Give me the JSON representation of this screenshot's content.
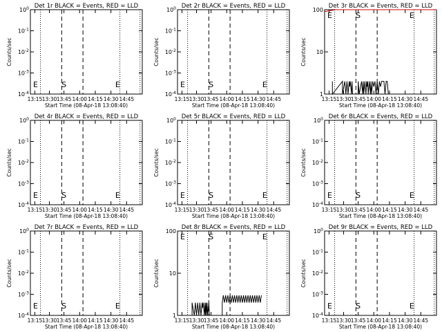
{
  "chart_data": [
    {
      "type": "line",
      "title": "Det 1r BLACK = Events, RED = LLD",
      "xlabel": "Start Time (08-Apr-18 13:08:40)",
      "ylabel": "Counts/sec",
      "yscale": "log",
      "yrange": "1e0-1e-4",
      "yticks": [
        "10^-4",
        "10^-3",
        "10^-2",
        "10^-1",
        "10^0"
      ],
      "xticks": [
        "13:15",
        "13:30",
        "13:45",
        "14:00",
        "14:15",
        "14:30",
        "14:45"
      ],
      "markers": {
        "start": "S",
        "end": "E"
      },
      "series": []
    },
    {
      "type": "line",
      "title": "Det 2r BLACK = Events, RED = LLD",
      "xlabel": "Start Time (08-Apr-18 13:08:40)",
      "ylabel": "Counts/sec",
      "yscale": "log",
      "yrange": "1e0-1e-4",
      "yticks": [
        "10^-4",
        "10^-3",
        "10^-2",
        "10^-1",
        "10^0"
      ],
      "xticks": [
        "13:15",
        "13:30",
        "13:45",
        "14:00",
        "14:15",
        "14:30",
        "14:45"
      ],
      "markers": {
        "start": "S",
        "end": "E"
      },
      "series": []
    },
    {
      "type": "line",
      "title": "Det 3r BLACK = Events, RED = LLD",
      "xlabel": "Start Time (08-Apr-18 13:08:40)",
      "ylabel": "Counts/sec",
      "yscale": "log",
      "yrange": "1-100",
      "yticks": [
        "1",
        "10",
        "100"
      ],
      "xticks": [
        "13:15",
        "13:30",
        "13:45",
        "14:00",
        "14:15",
        "14:30",
        "14:45"
      ],
      "markers": {
        "start": "S",
        "end": "E"
      },
      "series": [
        {
          "color": "#000000",
          "points": [
            [
              0.07,
              1
            ],
            [
              0.07,
              2
            ],
            [
              0.07,
              1
            ],
            [
              0.16,
              2
            ],
            [
              0.16,
              1
            ],
            [
              0.18,
              2
            ],
            [
              0.19,
              1
            ],
            [
              0.2,
              2
            ],
            [
              0.21,
              1
            ],
            [
              0.22,
              2
            ],
            [
              0.225,
              1.5
            ],
            [
              0.23,
              2
            ],
            [
              0.24,
              1
            ],
            [
              0.245,
              2
            ],
            [
              0.25,
              1
            ],
            [
              0.3,
              1
            ],
            [
              0.3,
              2
            ],
            [
              0.31,
              1
            ],
            [
              0.33,
              2
            ],
            [
              0.34,
              1
            ],
            [
              0.345,
              2
            ],
            [
              0.35,
              1
            ],
            [
              0.36,
              2
            ],
            [
              0.37,
              1
            ],
            [
              0.375,
              2
            ],
            [
              0.38,
              1.5
            ],
            [
              0.385,
              2
            ],
            [
              0.39,
              1
            ],
            [
              0.4,
              2
            ],
            [
              0.41,
              1
            ],
            [
              0.415,
              2
            ],
            [
              0.42,
              1
            ],
            [
              0.43,
              2
            ],
            [
              0.44,
              1.5
            ],
            [
              0.45,
              2
            ],
            [
              0.46,
              1
            ],
            [
              0.47,
              2
            ],
            [
              0.48,
              1
            ],
            [
              0.49,
              2
            ],
            [
              0.5,
              1.5
            ],
            [
              0.51,
              2
            ],
            [
              0.52,
              2
            ],
            [
              0.53,
              2
            ],
            [
              0.54,
              1
            ],
            [
              0.55,
              2
            ],
            [
              0.56,
              2
            ],
            [
              0.57,
              1
            ]
          ]
        },
        {
          "color": "#cc0000",
          "points": [
            [
              0.0,
              90
            ],
            [
              0.05,
              95
            ],
            [
              0.1,
              100
            ],
            [
              0.15,
              105
            ],
            [
              0.2,
              110
            ],
            [
              0.3,
              112
            ],
            [
              0.4,
              112
            ],
            [
              0.5,
              110
            ],
            [
              0.6,
              108
            ],
            [
              0.7,
              105
            ],
            [
              0.8,
              105
            ],
            [
              0.9,
              102
            ],
            [
              1.0,
              100
            ]
          ]
        }
      ]
    },
    {
      "type": "line",
      "title": "Det 4r BLACK = Events, RED = LLD",
      "xlabel": "Start Time (08-Apr-18 13:08:40)",
      "ylabel": "Counts/sec",
      "yscale": "log",
      "yrange": "1e0-1e-4",
      "yticks": [
        "10^-4",
        "10^-3",
        "10^-2",
        "10^-1",
        "10^0"
      ],
      "xticks": [
        "13:15",
        "13:30",
        "13:45",
        "14:00",
        "14:15",
        "14:30",
        "14:45"
      ],
      "markers": {
        "start": "S",
        "end": "E"
      },
      "series": []
    },
    {
      "type": "line",
      "title": "Det 5r BLACK = Events, RED = LLD",
      "xlabel": "Start Time (08-Apr-18 13:08:40)",
      "ylabel": "Counts/sec",
      "yscale": "log",
      "yrange": "1e0-1e-4",
      "yticks": [
        "10^-4",
        "10^-3",
        "10^-2",
        "10^-1",
        "10^0"
      ],
      "xticks": [
        "13:15",
        "13:30",
        "13:45",
        "14:00",
        "14:15",
        "14:30",
        "14:45"
      ],
      "markers": {
        "start": "S",
        "end": "E"
      },
      "series": []
    },
    {
      "type": "line",
      "title": "Det 6r BLACK = Events, RED = LLD",
      "xlabel": "Start Time (08-Apr-18 13:08:40)",
      "ylabel": "Counts/sec",
      "yscale": "log",
      "yrange": "1e0-1e-4",
      "yticks": [
        "10^-4",
        "10^-3",
        "10^-2",
        "10^-1",
        "10^0"
      ],
      "xticks": [
        "13:15",
        "13:30",
        "13:45",
        "14:00",
        "14:15",
        "14:30",
        "14:45"
      ],
      "markers": {
        "start": "S",
        "end": "E"
      },
      "series": []
    },
    {
      "type": "line",
      "title": "Det 7r BLACK = Events, RED = LLD",
      "xlabel": "Start Time (08-Apr-18 13:08:40)",
      "ylabel": "Counts/sec",
      "yscale": "log",
      "yrange": "1e0-1e-4",
      "yticks": [
        "10^-4",
        "10^-3",
        "10^-2",
        "10^-1",
        "10^0"
      ],
      "xticks": [
        "13:15",
        "13:30",
        "13:45",
        "14:00",
        "14:15",
        "14:30",
        "14:45"
      ],
      "markers": {
        "start": "S",
        "end": "E"
      },
      "series": []
    },
    {
      "type": "line",
      "title": "Det 8r BLACK = Events, RED = LLD",
      "xlabel": "Start Time (08-Apr-18 13:08:40)",
      "ylabel": "Counts/sec",
      "yscale": "log",
      "yrange": "1-100",
      "yticks": [
        "1",
        "10",
        "100"
      ],
      "xticks": [
        "13:15",
        "13:30",
        "13:45",
        "14:00",
        "14:15",
        "14:30",
        "14:45"
      ],
      "markers": {
        "start": "S",
        "end": "E"
      },
      "series": [
        {
          "color": "#000000",
          "points": [
            [
              0.13,
              1
            ],
            [
              0.13,
              2
            ],
            [
              0.15,
              1
            ],
            [
              0.16,
              2
            ],
            [
              0.17,
              1
            ],
            [
              0.18,
              2
            ],
            [
              0.19,
              1
            ],
            [
              0.2,
              2
            ],
            [
              0.21,
              1
            ],
            [
              0.22,
              2
            ],
            [
              0.225,
              1.5
            ],
            [
              0.23,
              2
            ],
            [
              0.24,
              1
            ],
            [
              0.245,
              2
            ],
            [
              0.25,
              1
            ],
            [
              0.255,
              2
            ],
            [
              0.26,
              1
            ],
            [
              0.265,
              2
            ],
            [
              0.27,
              1
            ],
            [
              0.28,
              2
            ],
            [
              0.285,
              1
            ],
            [
              0.4,
              1
            ],
            [
              0.4,
              2
            ],
            [
              0.41,
              3
            ],
            [
              0.42,
              2
            ],
            [
              0.43,
              3
            ],
            [
              0.44,
              2
            ],
            [
              0.45,
              3
            ],
            [
              0.46,
              2
            ],
            [
              0.47,
              3
            ],
            [
              0.48,
              2
            ],
            [
              0.49,
              3
            ],
            [
              0.5,
              2
            ],
            [
              0.51,
              3
            ],
            [
              0.52,
              2
            ],
            [
              0.53,
              3
            ],
            [
              0.54,
              2
            ],
            [
              0.55,
              3
            ],
            [
              0.56,
              2
            ],
            [
              0.57,
              3
            ],
            [
              0.58,
              2
            ],
            [
              0.59,
              3
            ],
            [
              0.6,
              2
            ],
            [
              0.61,
              3
            ],
            [
              0.62,
              2
            ],
            [
              0.63,
              3
            ],
            [
              0.64,
              2
            ],
            [
              0.65,
              3
            ],
            [
              0.66,
              2
            ],
            [
              0.67,
              3
            ],
            [
              0.68,
              2
            ],
            [
              0.69,
              3
            ],
            [
              0.7,
              2
            ],
            [
              0.71,
              3
            ],
            [
              0.72,
              2
            ],
            [
              0.73,
              3
            ],
            [
              0.74,
              2
            ],
            [
              0.75,
              3
            ]
          ]
        }
      ]
    },
    {
      "type": "line",
      "title": "Det 9r BLACK = Events, RED = LLD",
      "xlabel": "Start Time (08-Apr-18 13:08:40)",
      "ylabel": "Counts/sec",
      "yscale": "log",
      "yrange": "1e0-1e-4",
      "yticks": [
        "10^-4",
        "10^-3",
        "10^-2",
        "10^-1",
        "10^0"
      ],
      "xticks": [
        "13:15",
        "13:30",
        "13:45",
        "14:00",
        "14:15",
        "14:30",
        "14:45"
      ],
      "markers": {
        "start": "S",
        "end": "E"
      },
      "series": []
    }
  ]
}
